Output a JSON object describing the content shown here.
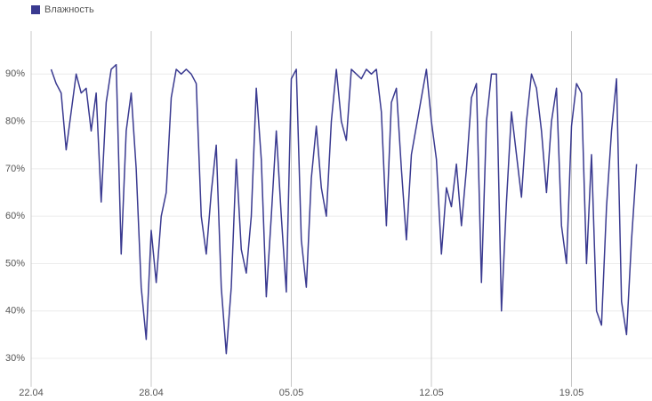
{
  "chart_data": {
    "type": "line",
    "legend": "top-left",
    "grid": true,
    "categories": [
      "22.04",
      null,
      null,
      null,
      null,
      null,
      null,
      null,
      null,
      null,
      null,
      null,
      null,
      null,
      null,
      null,
      null,
      null,
      null,
      null,
      null,
      null,
      null,
      null,
      "28.04",
      null,
      null,
      null,
      null,
      null,
      null,
      null,
      null,
      null,
      null,
      null,
      null,
      null,
      null,
      null,
      null,
      null,
      null,
      null,
      null,
      null,
      null,
      null,
      null,
      null,
      null,
      null,
      "05.05",
      null,
      null,
      null,
      null,
      null,
      null,
      null,
      null,
      null,
      null,
      null,
      null,
      null,
      null,
      null,
      null,
      null,
      null,
      null,
      null,
      null,
      null,
      null,
      null,
      null,
      null,
      null,
      "12.05",
      null,
      null,
      null,
      null,
      null,
      null,
      null,
      null,
      null,
      null,
      null,
      null,
      null,
      null,
      null,
      null,
      null,
      null,
      null,
      null,
      null,
      null,
      null,
      null,
      null,
      null,
      null,
      "19.05",
      null,
      null,
      null,
      null,
      null,
      null,
      null,
      null,
      null,
      null,
      null,
      null,
      null
    ],
    "series": [
      {
        "name": "Влажность",
        "color": "#3a3a90",
        "values": [
          null,
          null,
          null,
          null,
          91,
          88,
          86,
          74,
          82,
          90,
          86,
          87,
          78,
          86,
          63,
          84,
          91,
          92,
          52,
          78,
          86,
          70,
          45,
          34,
          57,
          46,
          60,
          65,
          85,
          91,
          90,
          91,
          90,
          88,
          60,
          52,
          65,
          75,
          45,
          31,
          45,
          72,
          53,
          48,
          60,
          87,
          72,
          43,
          60,
          78,
          60,
          44,
          89,
          91,
          55,
          45,
          68,
          79,
          66,
          60,
          80,
          91,
          80,
          76,
          91,
          90,
          89,
          91,
          90,
          91,
          82,
          58,
          84,
          87,
          70,
          55,
          73,
          79,
          85,
          91,
          80,
          72,
          52,
          66,
          62,
          71,
          58,
          70,
          85,
          88,
          46,
          80,
          90,
          90,
          40,
          63,
          82,
          73,
          64,
          80,
          90,
          87,
          78,
          65,
          80,
          87,
          58,
          50,
          79,
          88,
          86,
          50,
          73,
          40,
          37,
          62,
          78,
          89,
          42,
          35,
          55,
          71
        ]
      }
    ],
    "ylim": [
      24,
      100
    ],
    "yticks": [
      {
        "value": 30,
        "label": "30%"
      },
      {
        "value": 40,
        "label": "40%"
      },
      {
        "value": 50,
        "label": "50%"
      },
      {
        "value": 60,
        "label": "60%"
      },
      {
        "value": 70,
        "label": "70%"
      },
      {
        "value": 80,
        "label": "80%"
      },
      {
        "value": 90,
        "label": "90%"
      }
    ]
  }
}
